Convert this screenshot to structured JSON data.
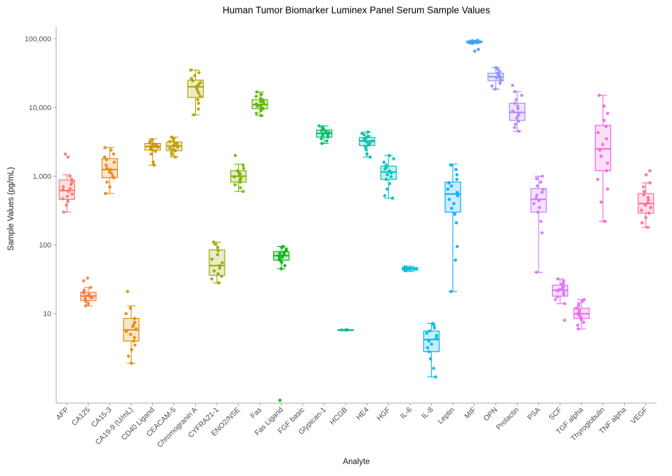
{
  "chart_data": {
    "type": "boxplot",
    "title": "Human Tumor Biomarker Luminex Panel Serum Sample Values",
    "xlabel": "Analyte",
    "ylabel": "Sample Values (pg/mL)",
    "y_scale": "log10",
    "ylim": [
      0.5,
      150000
    ],
    "y_ticks": [
      10,
      100,
      1000,
      10000,
      100000
    ],
    "y_tick_labels": [
      "10",
      "100",
      "1,000",
      "10,000",
      "100,000"
    ],
    "grid": false,
    "legend": "none",
    "series": [
      {
        "analyte": "AFP",
        "color": "#F8766D",
        "box": {
          "lo": 300,
          "q1": 460,
          "median": 620,
          "q3": 880,
          "hi": 1050
        },
        "points": [
          300,
          380,
          430,
          470,
          510,
          550,
          600,
          630,
          660,
          700,
          760,
          820,
          900,
          1000,
          1900,
          2100
        ]
      },
      {
        "analyte": "CA125",
        "color": "#F07F42",
        "box": {
          "lo": 13,
          "q1": 15.5,
          "median": 18,
          "q3": 20.5,
          "hi": 24
        },
        "points": [
          13,
          14,
          15,
          16,
          16.5,
          17,
          17.5,
          18,
          18.5,
          19,
          20,
          21,
          22,
          24,
          30,
          33
        ]
      },
      {
        "analyte": "CA15-3",
        "color": "#E68613",
        "box": {
          "lo": 560,
          "q1": 950,
          "median": 1250,
          "q3": 1800,
          "hi": 2600
        },
        "points": [
          560,
          700,
          820,
          950,
          1000,
          1100,
          1150,
          1250,
          1300,
          1450,
          1600,
          1750,
          1900,
          2100,
          2400,
          2600
        ]
      },
      {
        "analyte": "CA19-9 (U/mL)",
        "color": "#DB8E00",
        "box": {
          "lo": 1.9,
          "q1": 4,
          "median": 5.8,
          "q3": 8.5,
          "hi": 13
        },
        "points": [
          1.9,
          2.4,
          3,
          3.5,
          4,
          4.5,
          5,
          5.5,
          6,
          6.5,
          7,
          7.5,
          8.5,
          10,
          12,
          21
        ]
      },
      {
        "analyte": "CD40 Ligand",
        "color": "#CE9500",
        "box": {
          "lo": 1450,
          "q1": 2400,
          "median": 2700,
          "q3": 3000,
          "hi": 3500
        },
        "points": [
          1450,
          1600,
          2100,
          2300,
          2400,
          2500,
          2600,
          2650,
          2700,
          2750,
          2850,
          2950,
          3050,
          3200,
          3400
        ]
      },
      {
        "analyte": "CEACAM-5",
        "color": "#BF9C00",
        "box": {
          "lo": 1900,
          "q1": 2350,
          "median": 2750,
          "q3": 3150,
          "hi": 3700
        },
        "points": [
          1900,
          2050,
          2200,
          2350,
          2450,
          2550,
          2650,
          2750,
          2850,
          2950,
          3050,
          3200,
          3350,
          3550,
          3700
        ]
      },
      {
        "analyte": "Chromogranin A",
        "color": "#AEA200",
        "box": {
          "lo": 7800,
          "q1": 14000,
          "median": 20000,
          "q3": 25000,
          "hi": 35000
        },
        "points": [
          7800,
          9500,
          11500,
          13000,
          14500,
          16000,
          17500,
          19000,
          20000,
          21500,
          23000,
          24500,
          26500,
          29000,
          32000,
          35000
        ]
      },
      {
        "analyte": "CYFRA21-1",
        "color": "#99A800",
        "box": {
          "lo": 28,
          "q1": 36,
          "median": 50,
          "q3": 85,
          "hi": 110
        },
        "points": [
          28,
          32,
          35,
          38,
          42,
          46,
          50,
          55,
          62,
          72,
          82,
          92,
          102,
          110
        ]
      },
      {
        "analyte": "ENO2/NSE",
        "color": "#7FAE00",
        "box": {
          "lo": 600,
          "q1": 820,
          "median": 1000,
          "q3": 1200,
          "hi": 1500
        },
        "points": [
          600,
          680,
          750,
          820,
          880,
          930,
          980,
          1020,
          1080,
          1130,
          1200,
          1300,
          1450,
          2000
        ]
      },
      {
        "analyte": "Fas",
        "color": "#5BB300",
        "box": {
          "lo": 7600,
          "q1": 9600,
          "median": 11000,
          "q3": 13000,
          "hi": 16800
        },
        "points": [
          7600,
          8200,
          9000,
          9600,
          10000,
          10400,
          10800,
          11200,
          11700,
          12200,
          12800,
          13500,
          14500,
          15500,
          16800
        ]
      },
      {
        "analyte": "Fas Ligand",
        "color": "#00B713",
        "box": {
          "lo": 45,
          "q1": 60,
          "median": 70,
          "q3": 80,
          "hi": 95
        },
        "points": [
          0.55,
          45,
          50,
          56,
          60,
          63,
          66,
          69,
          72,
          75,
          78,
          82,
          87,
          92,
          95
        ]
      },
      {
        "analyte": "FGF basic",
        "color": "#00BA49",
        "box": null,
        "points": []
      },
      {
        "analyte": "Glypican-1",
        "color": "#00BD6D",
        "box": {
          "lo": 3000,
          "q1": 3700,
          "median": 4200,
          "q3": 4700,
          "hi": 5400
        },
        "points": [
          3000,
          3250,
          3500,
          3700,
          3850,
          4000,
          4150,
          4300,
          4450,
          4600,
          4800,
          5100,
          5400
        ]
      },
      {
        "analyte": "HCGB",
        "color": "#00BF8C",
        "box": {
          "lo": 5.8,
          "q1": 5.8,
          "median": 5.8,
          "q3": 5.8,
          "hi": 5.8
        },
        "points": [
          5.8,
          5.8,
          5.8,
          5.8
        ]
      },
      {
        "analyte": "HE4",
        "color": "#00C0A7",
        "box": {
          "lo": 1900,
          "q1": 2800,
          "median": 3250,
          "q3": 3650,
          "hi": 4400
        },
        "points": [
          1900,
          2100,
          2450,
          2700,
          2850,
          3000,
          3150,
          3250,
          3350,
          3500,
          3650,
          3800,
          4000,
          4200,
          4400
        ]
      },
      {
        "analyte": "HGF",
        "color": "#00BFC1",
        "box": {
          "lo": 480,
          "q1": 900,
          "median": 1150,
          "q3": 1400,
          "hi": 2000
        },
        "points": [
          480,
          520,
          650,
          780,
          900,
          980,
          1050,
          1120,
          1200,
          1280,
          1350,
          1450,
          1600,
          1800,
          2000
        ]
      },
      {
        "analyte": "IL-6",
        "color": "#00BCD8",
        "box": {
          "lo": 41,
          "q1": 43,
          "median": 45,
          "q3": 47,
          "hi": 49
        },
        "points": [
          42,
          44,
          45,
          46,
          48
        ]
      },
      {
        "analyte": "IL-8",
        "color": "#00B6EB",
        "box": {
          "lo": 1.2,
          "q1": 2.8,
          "median": 4.2,
          "q3": 5.6,
          "hi": 7.2
        },
        "points": [
          1.2,
          1.6,
          2.2,
          2.8,
          3.2,
          3.6,
          4,
          4.4,
          4.8,
          5.2,
          5.6,
          6.2,
          6.8,
          7.2
        ]
      },
      {
        "analyte": "Leptin",
        "color": "#00ACFB",
        "box": {
          "lo": 21,
          "q1": 300,
          "median": 550,
          "q3": 820,
          "hi": 1500
        },
        "points": [
          21,
          60,
          95,
          210,
          280,
          340,
          400,
          460,
          520,
          580,
          650,
          720,
          800,
          900,
          1050,
          1250,
          1450
        ]
      },
      {
        "analyte": "MIF",
        "color": "#459FFF",
        "box": {
          "lo": 85000,
          "q1": 87500,
          "median": 90000,
          "q3": 92500,
          "hi": 95000
        },
        "points": [
          66000,
          70000,
          85000,
          87000,
          89000,
          90000,
          91000,
          92000,
          93500,
          95000
        ]
      },
      {
        "analyte": "OPN",
        "color": "#8F91FF",
        "box": {
          "lo": 18500,
          "q1": 24500,
          "median": 28000,
          "q3": 31500,
          "hi": 38000
        },
        "points": [
          18500,
          20500,
          22500,
          24500,
          26000,
          27000,
          28000,
          29000,
          30000,
          31500,
          33500,
          36000,
          38000
        ]
      },
      {
        "analyte": "Prolactin",
        "color": "#B284FF",
        "box": {
          "lo": 4500,
          "q1": 6500,
          "median": 8500,
          "q3": 11500,
          "hi": 17000
        },
        "points": [
          4500,
          5100,
          5700,
          6300,
          7000,
          7600,
          8200,
          8800,
          9600,
          10500,
          11500,
          13000,
          15000,
          17000,
          21000
        ]
      },
      {
        "analyte": "PSA",
        "color": "#CC79FF",
        "box": {
          "lo": 40,
          "q1": 300,
          "median": 460,
          "q3": 660,
          "hi": 1000
        },
        "points": [
          40,
          150,
          220,
          300,
          350,
          400,
          440,
          480,
          530,
          580,
          640,
          720,
          820,
          920,
          1000
        ]
      },
      {
        "analyte": "SCF",
        "color": "#DF70F8",
        "box": {
          "lo": 14,
          "q1": 18,
          "median": 22,
          "q3": 26,
          "hi": 32
        },
        "points": [
          8,
          14,
          16,
          17.5,
          19,
          20.5,
          21.5,
          22.5,
          23.5,
          25,
          26.5,
          28,
          30,
          32
        ]
      },
      {
        "analyte": "TGF alpha",
        "color": "#ED68EE",
        "box": {
          "lo": 6,
          "q1": 8.5,
          "median": 10,
          "q3": 12,
          "hi": 16
        },
        "points": [
          6,
          6.8,
          7.5,
          8.2,
          8.8,
          9.4,
          10,
          10.6,
          11.2,
          12,
          13,
          14,
          15,
          16
        ]
      },
      {
        "analyte": "Thyroglobulin",
        "color": "#F962DE",
        "box": {
          "lo": 220,
          "q1": 1200,
          "median": 2500,
          "q3": 5500,
          "hi": 15000
        },
        "points": [
          220,
          420,
          650,
          900,
          1200,
          1550,
          1950,
          2400,
          2900,
          3500,
          4300,
          5300,
          6500,
          8200,
          10500,
          15000
        ]
      },
      {
        "analyte": "TNF alpha",
        "color": "#FF61C7",
        "box": null,
        "points": []
      },
      {
        "analyte": "VEGF",
        "color": "#FF6C91",
        "box": {
          "lo": 180,
          "q1": 290,
          "median": 400,
          "q3": 560,
          "hi": 800
        },
        "points": [
          180,
          210,
          250,
          290,
          320,
          350,
          380,
          410,
          450,
          490,
          540,
          600,
          700,
          800,
          1050,
          1200
        ]
      }
    ]
  }
}
